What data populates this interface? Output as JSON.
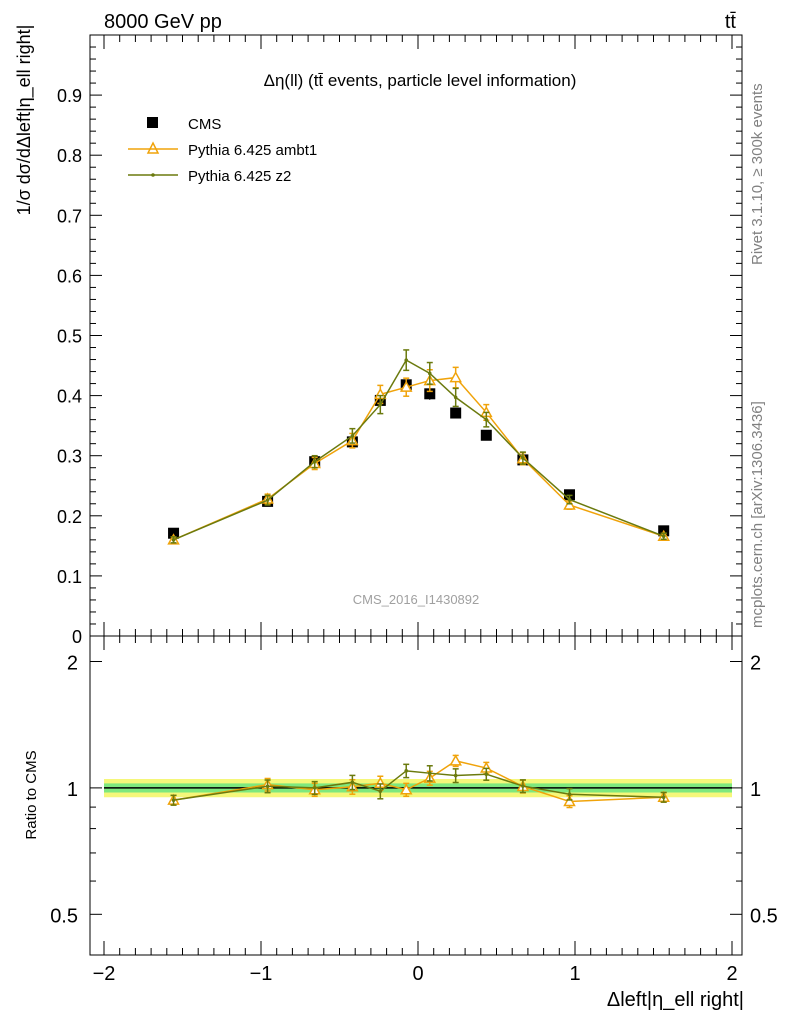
{
  "header": {
    "left_label": "8000 GeV pp",
    "right_label": "tt̄"
  },
  "side_labels": {
    "rivet": "Rivet 3.1.10, ≥ 300k events",
    "site": "mcplots.cern.ch [arXiv:1306.3436]"
  },
  "plot_title": "Δη(ll) (tt̄ events, particle level information)",
  "analysis_id": "CMS_2016_I1430892",
  "colors": {
    "cms": "#000000",
    "ambt1": "#f0a30a",
    "z2": "#6b7a0e",
    "band_inner": "#7ee87e",
    "band_outer": "#f5f77a",
    "ref_line": "#1a7a3a"
  },
  "chart_data": [
    {
      "type": "scatter",
      "name": "main-panel",
      "ylabel": "1/σ dσ/dΔleft|η_ell right|",
      "xlim": [
        -2,
        2
      ],
      "ylim": [
        0,
        1.0
      ],
      "yticks": [
        0,
        0.1,
        0.2,
        0.3,
        0.4,
        0.5,
        0.6,
        0.7,
        0.8,
        0.9
      ],
      "ytick_labels": [
        "0",
        "0.1",
        "0.2",
        "0.3",
        "0.4",
        "0.5",
        "0.6",
        "0.7",
        "0.8",
        "0.9"
      ],
      "legend_position": "top-left",
      "x": [
        -1.557,
        -0.958,
        -0.658,
        -0.418,
        -0.24,
        -0.075,
        0.075,
        0.24,
        0.435,
        0.668,
        0.965,
        1.565
      ],
      "series": [
        {
          "name": "CMS",
          "marker": "square",
          "values": [
            0.171,
            0.224,
            0.29,
            0.323,
            0.392,
            0.418,
            0.403,
            0.371,
            0.334,
            0.293,
            0.235,
            0.175
          ],
          "errors": [
            0.004,
            0.004,
            0.006,
            0.008,
            0.01,
            0.01,
            0.01,
            0.008,
            0.006,
            0.006,
            0.004,
            0.004
          ]
        },
        {
          "name": "Pythia 6.425 ambt1",
          "marker": "triangle",
          "values": [
            0.16,
            0.228,
            0.287,
            0.325,
            0.402,
            0.414,
            0.425,
            0.43,
            0.372,
            0.295,
            0.218,
            0.166
          ],
          "errors": [
            0.005,
            0.008,
            0.01,
            0.012,
            0.015,
            0.015,
            0.018,
            0.017,
            0.013,
            0.01,
            0.007,
            0.005
          ]
        },
        {
          "name": "Pythia 6.425 z2",
          "marker": "dot",
          "values": [
            0.16,
            0.226,
            0.29,
            0.333,
            0.385,
            0.459,
            0.437,
            0.397,
            0.36,
            0.296,
            0.227,
            0.166
          ],
          "errors": [
            0.005,
            0.008,
            0.01,
            0.012,
            0.015,
            0.017,
            0.018,
            0.015,
            0.012,
            0.01,
            0.007,
            0.005
          ]
        }
      ]
    },
    {
      "type": "line",
      "name": "ratio-panel",
      "ylabel": "Ratio to CMS",
      "xlabel": "Δleft|η_ell right|",
      "xlim": [
        -2,
        2
      ],
      "ylim": [
        0.4,
        2.3
      ],
      "log_y": true,
      "yticks": [
        0.5,
        1,
        2
      ],
      "ytick_labels": [
        "0.5",
        "1",
        "2"
      ],
      "xticks": [
        -2,
        -1,
        0,
        1,
        2
      ],
      "xtick_labels": [
        "−2",
        "−1",
        "0",
        "1",
        "2"
      ],
      "x": [
        -1.557,
        -0.958,
        -0.658,
        -0.418,
        -0.24,
        -0.075,
        0.075,
        0.24,
        0.435,
        0.668,
        0.965,
        1.565
      ],
      "band": {
        "inner": 0.025,
        "outer": 0.05
      },
      "series": [
        {
          "name": "Pythia 6.425 ambt1",
          "values": [
            0.935,
            1.018,
            0.99,
            1.006,
            1.026,
            0.99,
            1.055,
            1.16,
            1.115,
            1.008,
            0.928,
            0.95
          ],
          "errors": [
            0.025,
            0.035,
            0.035,
            0.04,
            0.04,
            0.035,
            0.04,
            0.035,
            0.035,
            0.035,
            0.03,
            0.025
          ]
        },
        {
          "name": "Pythia 6.425 z2",
          "values": [
            0.935,
            1.009,
            1.0,
            1.031,
            0.982,
            1.098,
            1.084,
            1.07,
            1.078,
            1.01,
            0.966,
            0.95
          ],
          "errors": [
            0.025,
            0.035,
            0.035,
            0.04,
            0.04,
            0.04,
            0.045,
            0.04,
            0.035,
            0.035,
            0.03,
            0.025
          ]
        }
      ]
    }
  ]
}
